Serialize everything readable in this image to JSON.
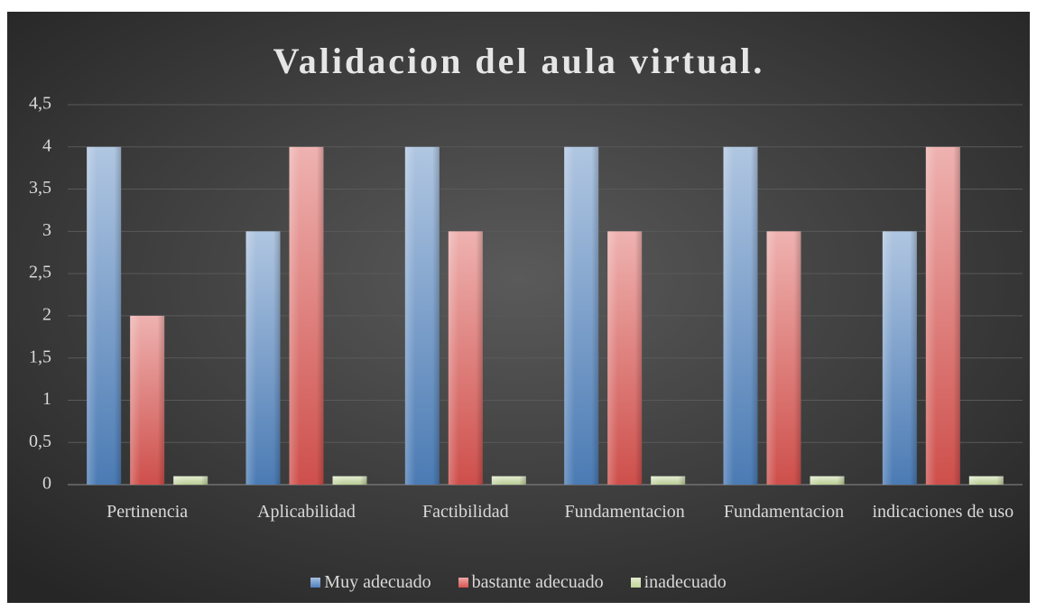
{
  "chart_data": {
    "type": "bar",
    "title": "Validacion del aula virtual.",
    "categories": [
      "Pertinencia",
      "Aplicabilidad",
      "Factibilidad",
      "Fundamentacion",
      "Fundamentacion",
      "indicaciones de uso"
    ],
    "series": [
      {
        "name": "Muy adecuado",
        "color": "#4f81bd",
        "values": [
          4,
          3,
          4,
          4,
          4,
          3
        ]
      },
      {
        "name": "bastante adecuado",
        "color": "#d9534f",
        "values": [
          2,
          4,
          3,
          3,
          3,
          4
        ]
      },
      {
        "name": "inadecuado",
        "color": "#c3d69b",
        "values": [
          0.1,
          0.1,
          0.1,
          0.1,
          0.1,
          0.1
        ]
      }
    ],
    "ylim": [
      0,
      4.5
    ],
    "yticks": [
      0,
      {
        "value": 0.5,
        "label": "0,5"
      },
      1,
      {
        "value": 1.5,
        "label": "1,5"
      },
      2,
      {
        "value": 2.5,
        "label": "2,5"
      },
      3,
      {
        "value": 3.5,
        "label": "3,5"
      },
      4,
      {
        "value": 4.5,
        "label": "4,5"
      }
    ],
    "grid": true,
    "legend": "bottom"
  }
}
